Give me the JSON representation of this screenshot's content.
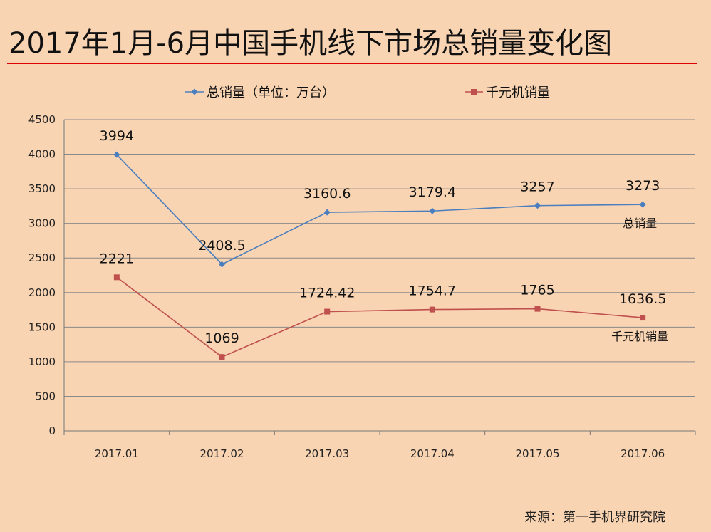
{
  "title": "2017年1月-6月中国手机线下市场总销量变化图",
  "source": "来源：第一手机界研究院",
  "colors": {
    "background": "#f9d4b2",
    "title_rule": "#e00000",
    "series_total": "#4a7ebf",
    "series_budget": "#c0504d",
    "grid": "#8a8a8a"
  },
  "chart_data": {
    "type": "line",
    "categories": [
      "2017.01",
      "2017.02",
      "2017.03",
      "2017.04",
      "2017.05",
      "2017.06"
    ],
    "ylim": [
      0,
      4500
    ],
    "yticks": [
      0,
      500,
      1000,
      1500,
      2000,
      2500,
      3000,
      3500,
      4000,
      4500
    ],
    "grid": true,
    "legend_position": "top",
    "series": [
      {
        "name": "总销量（单位：万台）",
        "end_label": "总销量",
        "marker": "diamond",
        "values": [
          3994,
          2408.5,
          3160.6,
          3179.4,
          3257,
          3273
        ],
        "labels": [
          "3994",
          "2408.5",
          "3160.6",
          "3179.4",
          "3257",
          "3273"
        ]
      },
      {
        "name": "千元机销量",
        "end_label": "千元机销量",
        "marker": "square",
        "values": [
          2221,
          1069,
          1724.42,
          1754.7,
          1765,
          1636.5
        ],
        "labels": [
          "2221",
          "1069",
          "1724.42",
          "1754.7",
          "1765",
          "1636.5"
        ]
      }
    ]
  }
}
